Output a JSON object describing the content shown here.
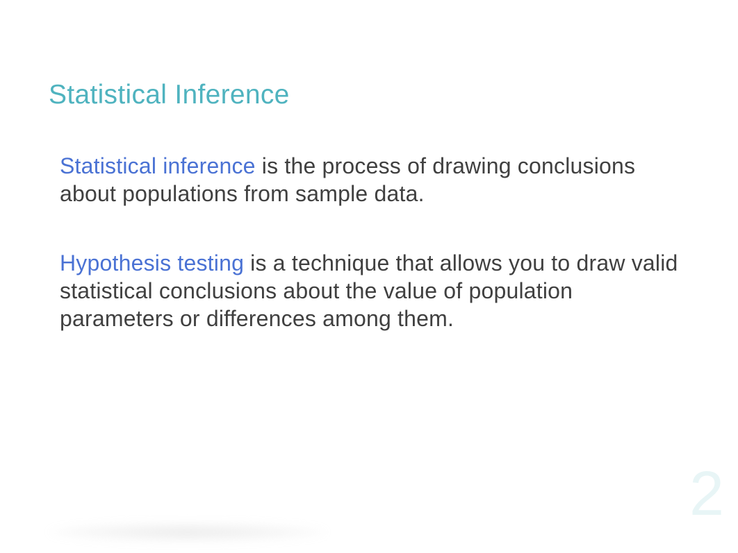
{
  "slide": {
    "title": "Statistical Inference",
    "title_color": "#4fb3bf",
    "title_fontsize": 39,
    "background_color": "#ffffff",
    "page_number": "2",
    "page_number_color": "#e8f5f6",
    "page_number_fontsize": 90,
    "body_fontsize": 32,
    "body_color": "#404040",
    "highlight_color": "#4a72d4",
    "paragraphs": [
      {
        "term": "Statistical inference",
        "rest": " is the process of drawing conclusions about populations from sample data."
      },
      {
        "term": "Hypothesis testing",
        "rest": " is a technique that allows you to draw valid statistical conclusions about the value of population parameters or differences among them."
      }
    ]
  }
}
